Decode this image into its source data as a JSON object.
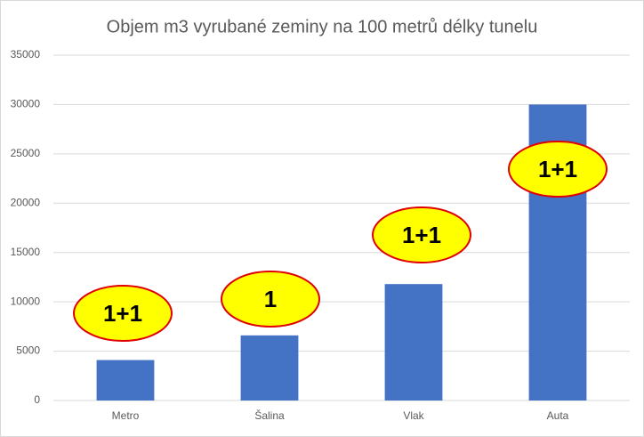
{
  "chart_data": {
    "type": "bar",
    "title": "Objem m3 vyrubané zeminy na 100 metrů délky tunelu",
    "categories": [
      "Metro",
      "Šalina",
      "Vlak",
      "Auta"
    ],
    "values": [
      4100,
      6600,
      11800,
      30000
    ],
    "color": "#4472c4",
    "ylim": [
      0,
      35000
    ],
    "yticks": [
      0,
      5000,
      10000,
      15000,
      20000,
      25000,
      30000,
      35000
    ],
    "grid": true,
    "annotations": [
      "1+1",
      "1",
      "1+1",
      "1+1"
    ]
  }
}
